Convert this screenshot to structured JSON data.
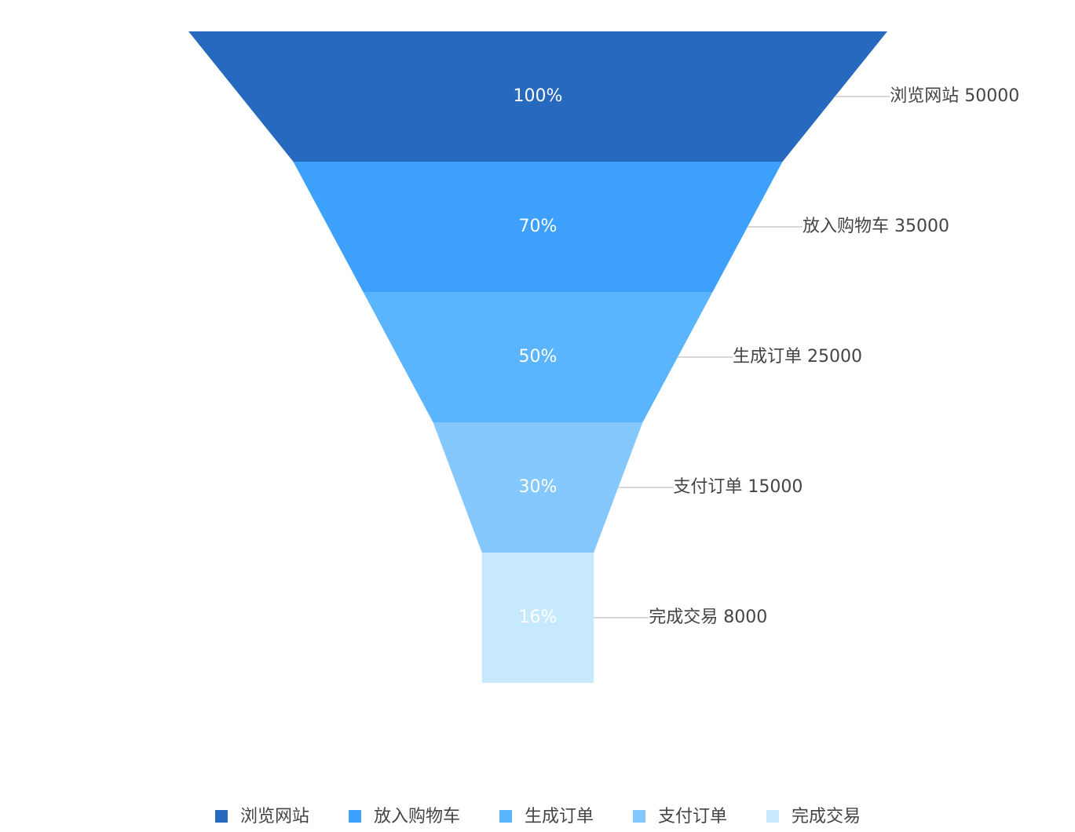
{
  "chart_data": {
    "type": "funnel",
    "categories": [
      "浏览网站",
      "放入购物车",
      "生成订单",
      "支付订单",
      "完成交易"
    ],
    "values": [
      50000,
      35000,
      25000,
      15000,
      8000
    ],
    "percent_labels": [
      "100%",
      "70%",
      "50%",
      "30%",
      "16%"
    ],
    "colors": [
      "#2769be",
      "#3ca0fc",
      "#5ab4fe",
      "#84c8fd",
      "#c6e9fd"
    ],
    "legend": "bottom"
  }
}
